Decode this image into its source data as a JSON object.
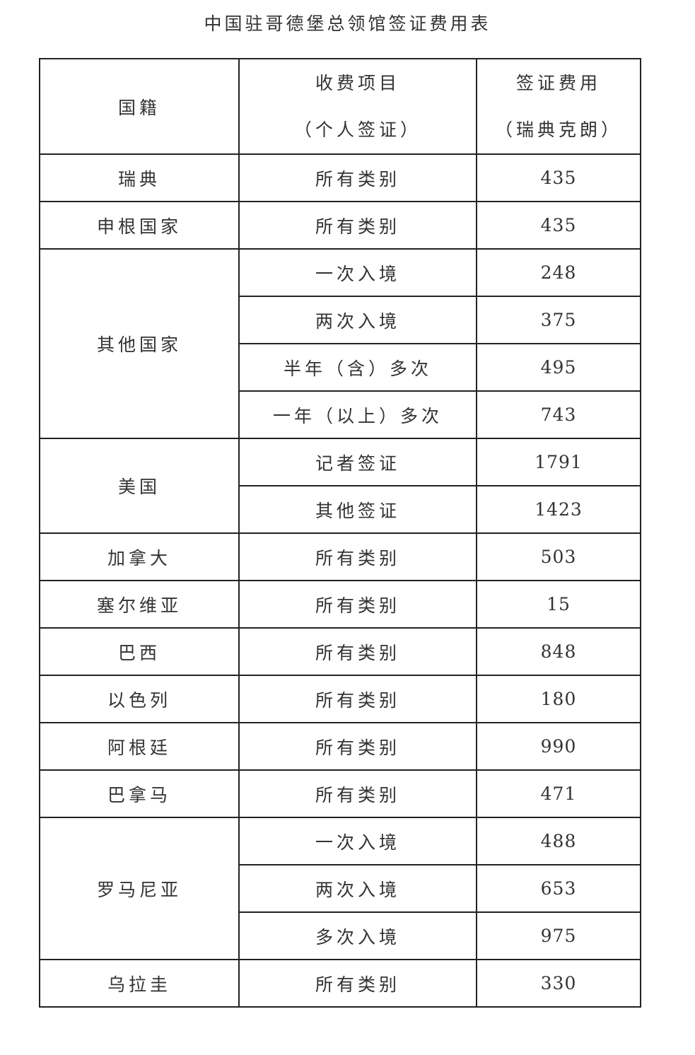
{
  "title": "中国驻哥德堡总领馆签证费用表",
  "header": {
    "nationality": "国籍",
    "item_line1": "收费项目",
    "item_line2": "（个人签证）",
    "fee_line1": "签证费用",
    "fee_line2": "（瑞典克朗）"
  },
  "groups": [
    {
      "country": "瑞典",
      "items": [
        {
          "item": "所有类别",
          "fee": "435"
        }
      ]
    },
    {
      "country": "申根国家",
      "items": [
        {
          "item": "所有类别",
          "fee": "435"
        }
      ]
    },
    {
      "country": "其他国家",
      "items": [
        {
          "item": "一次入境",
          "fee": "248"
        },
        {
          "item": "两次入境",
          "fee": "375"
        },
        {
          "item": "半年（含）多次",
          "fee": "495"
        },
        {
          "item": "一年（以上）多次",
          "fee": "743"
        }
      ]
    },
    {
      "country": "美国",
      "items": [
        {
          "item": "记者签证",
          "fee": "1791"
        },
        {
          "item": "其他签证",
          "fee": "1423"
        }
      ]
    },
    {
      "country": "加拿大",
      "items": [
        {
          "item": "所有类别",
          "fee": "503"
        }
      ]
    },
    {
      "country": "塞尔维亚",
      "items": [
        {
          "item": "所有类别",
          "fee": "15"
        }
      ]
    },
    {
      "country": "巴西",
      "items": [
        {
          "item": "所有类别",
          "fee": "848"
        }
      ]
    },
    {
      "country": "以色列",
      "items": [
        {
          "item": "所有类别",
          "fee": "180"
        }
      ]
    },
    {
      "country": "阿根廷",
      "items": [
        {
          "item": "所有类别",
          "fee": "990"
        }
      ]
    },
    {
      "country": "巴拿马",
      "items": [
        {
          "item": "所有类别",
          "fee": "471"
        }
      ]
    },
    {
      "country": "罗马尼亚",
      "items": [
        {
          "item": "一次入境",
          "fee": "488"
        },
        {
          "item": "两次入境",
          "fee": "653"
        },
        {
          "item": "多次入境",
          "fee": "975"
        }
      ]
    },
    {
      "country": "乌拉圭",
      "items": [
        {
          "item": "所有类别",
          "fee": "330"
        }
      ]
    }
  ]
}
